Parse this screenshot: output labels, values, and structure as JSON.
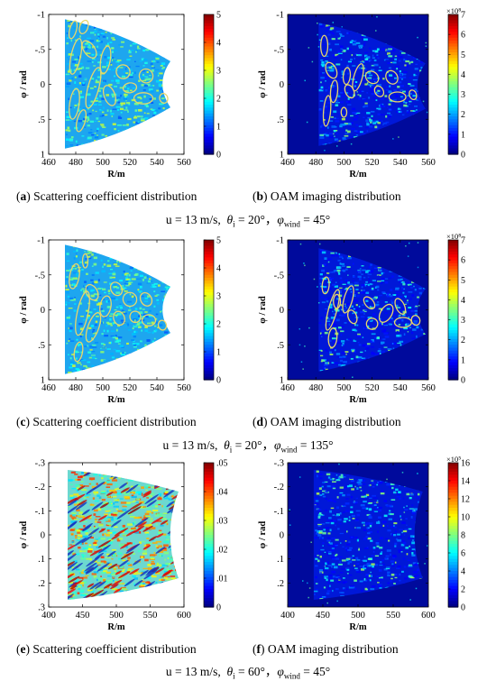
{
  "colormap": "jet",
  "ellipse_color": "#e8d66a",
  "chart_data": [
    {
      "id": "a",
      "type": "heatmap",
      "caption_tag": "a",
      "caption_text": "Scattering coefficient distribution",
      "xlabel": "R/m",
      "ylabel": "φ / rad",
      "xlim": [
        460,
        560
      ],
      "ylim": [
        -1,
        1
      ],
      "y_inverted": true,
      "xticks": [
        460,
        480,
        500,
        520,
        540,
        560
      ],
      "yticks": [
        -1,
        -0.5,
        0,
        0.5,
        1
      ],
      "colorbar": {
        "min": 0,
        "max": 5,
        "ticks": [
          0,
          1,
          2,
          3,
          4,
          5
        ],
        "exponent": ""
      },
      "panel_background": "white",
      "region": {
        "r_inner": 472,
        "r_outer": 550,
        "phi_top_inner": -0.93,
        "phi_bottom_inner": 0.92,
        "phi_top_outer": -0.33,
        "phi_bottom_outer": 0.33
      },
      "ellipses": [
        {
          "r": 478,
          "phi": -0.78,
          "rr": 2.5,
          "rp": 0.13,
          "tilt": 15
        },
        {
          "r": 480,
          "phi": -0.4,
          "rr": 3.5,
          "rp": 0.26,
          "tilt": 12
        },
        {
          "r": 479,
          "phi": 0.28,
          "rr": 3.5,
          "rp": 0.22,
          "tilt": 8
        },
        {
          "r": 484,
          "phi": 0.52,
          "rr": 3,
          "rp": 0.16,
          "tilt": 15
        },
        {
          "r": 486,
          "phi": -0.82,
          "rr": 3,
          "rp": 0.1,
          "tilt": 20
        },
        {
          "r": 490,
          "phi": -0.5,
          "rr": 4,
          "rp": 0.14,
          "tilt": -35
        },
        {
          "r": 493,
          "phi": 0.05,
          "rr": 4,
          "rp": 0.3,
          "tilt": 15
        },
        {
          "r": 502,
          "phi": -0.35,
          "rr": 3.5,
          "rp": 0.2,
          "tilt": 10
        },
        {
          "r": 505,
          "phi": 0.16,
          "rr": 4,
          "rp": 0.15,
          "tilt": -20
        },
        {
          "r": 515,
          "phi": -0.18,
          "rr": 5,
          "rp": 0.1,
          "tilt": -40
        },
        {
          "r": 520,
          "phi": 0.05,
          "rr": 5,
          "rp": 0.07,
          "tilt": -10
        },
        {
          "r": 532,
          "phi": -0.12,
          "rr": 5,
          "rp": 0.1,
          "tilt": -35
        },
        {
          "r": 530,
          "phi": 0.2,
          "rr": 7,
          "rp": 0.08,
          "tilt": 0
        },
        {
          "r": 545,
          "phi": 0.2,
          "rr": 3,
          "rp": 0.07,
          "tilt": -15
        }
      ]
    },
    {
      "id": "b",
      "type": "heatmap",
      "caption_tag": "b",
      "caption_text": "OAM imaging distribution",
      "xlabel": "R/m",
      "ylabel": "φ / rad",
      "xlim": [
        460,
        560
      ],
      "ylim": [
        -1,
        1
      ],
      "y_inverted": true,
      "xticks": [
        460,
        480,
        500,
        520,
        540,
        560
      ],
      "yticks": [
        -1,
        -0.5,
        0,
        0.5,
        1
      ],
      "colorbar": {
        "min": 0,
        "max": 7,
        "ticks": [
          0,
          1,
          2,
          3,
          4,
          5,
          6,
          7
        ],
        "exponent": "×10⁸"
      },
      "panel_background": "darkblue",
      "region": {
        "r_inner": 482,
        "r_outer": 558,
        "phi_top_inner": -0.88,
        "phi_bottom_inner": 0.88,
        "phi_top_outer": -0.3,
        "phi_bottom_outer": 0.35
      },
      "ellipses": [
        {
          "r": 486,
          "phi": -0.55,
          "rr": 2.5,
          "rp": 0.15,
          "tilt": 0
        },
        {
          "r": 491,
          "phi": -0.2,
          "rr": 3.5,
          "rp": 0.12,
          "tilt": -25
        },
        {
          "r": 493,
          "phi": 0.1,
          "rr": 2.5,
          "rp": 0.16,
          "tilt": 5
        },
        {
          "r": 488,
          "phi": 0.38,
          "rr": 2.5,
          "rp": 0.22,
          "tilt": 5
        },
        {
          "r": 502,
          "phi": -0.12,
          "rr": 2.5,
          "rp": 0.12,
          "tilt": 5
        },
        {
          "r": 504,
          "phi": 0.1,
          "rr": 3,
          "rp": 0.1,
          "tilt": -25
        },
        {
          "r": 500,
          "phi": 0.4,
          "rr": 2,
          "rp": 0.07,
          "tilt": 0
        },
        {
          "r": 510,
          "phi": -0.1,
          "rr": 3,
          "rp": 0.2,
          "tilt": 15
        },
        {
          "r": 520,
          "phi": -0.1,
          "rr": 4,
          "rp": 0.1,
          "tilt": -50
        },
        {
          "r": 525,
          "phi": 0.1,
          "rr": 3,
          "rp": 0.08,
          "tilt": -30
        },
        {
          "r": 534,
          "phi": -0.1,
          "rr": 4,
          "rp": 0.1,
          "tilt": -30
        },
        {
          "r": 538,
          "phi": 0.18,
          "rr": 6,
          "rp": 0.07,
          "tilt": 0
        },
        {
          "r": 549,
          "phi": 0.15,
          "rr": 2.5,
          "rp": 0.07,
          "tilt": -20
        }
      ]
    },
    {
      "id": "c",
      "type": "heatmap",
      "caption_tag": "c",
      "caption_text": "Scattering coefficient distribution",
      "xlabel": "R/m",
      "ylabel": "φ / rad",
      "xlim": [
        460,
        560
      ],
      "ylim": [
        -1,
        1
      ],
      "y_inverted": true,
      "xticks": [
        460,
        480,
        500,
        520,
        540,
        560
      ],
      "yticks": [
        -1,
        -0.5,
        0,
        0.5,
        1
      ],
      "colorbar": {
        "min": 0,
        "max": 5,
        "ticks": [
          0,
          1,
          2,
          3,
          4,
          5
        ],
        "exponent": ""
      },
      "panel_background": "white",
      "region": {
        "r_inner": 472,
        "r_outer": 550,
        "phi_top_inner": -0.93,
        "phi_bottom_inner": 0.92,
        "phi_top_outer": -0.33,
        "phi_bottom_outer": 0.33
      },
      "ellipses": [
        {
          "r": 479,
          "phi": -0.48,
          "rr": 3.5,
          "rp": 0.18,
          "tilt": 10
        },
        {
          "r": 485,
          "phi": 0.05,
          "rr": 4,
          "rp": 0.32,
          "tilt": 12
        },
        {
          "r": 482,
          "phi": 0.6,
          "rr": 3,
          "rp": 0.14,
          "tilt": 10
        },
        {
          "r": 487,
          "phi": -0.7,
          "rr": 2,
          "rp": 0.1,
          "tilt": 0
        },
        {
          "r": 492,
          "phi": -0.25,
          "rr": 4,
          "rp": 0.12,
          "tilt": -30
        },
        {
          "r": 493,
          "phi": 0.25,
          "rr": 4,
          "rp": 0.22,
          "tilt": 20
        },
        {
          "r": 502,
          "phi": -0.05,
          "rr": 4,
          "rp": 0.15,
          "tilt": 10
        },
        {
          "r": 510,
          "phi": -0.3,
          "rr": 4,
          "rp": 0.1,
          "tilt": -30
        },
        {
          "r": 512,
          "phi": 0.12,
          "rr": 4,
          "rp": 0.1,
          "tilt": -20
        },
        {
          "r": 520,
          "phi": -0.15,
          "rr": 5,
          "rp": 0.1,
          "tilt": -40
        },
        {
          "r": 524,
          "phi": 0.1,
          "rr": 4,
          "rp": 0.08,
          "tilt": -10
        },
        {
          "r": 532,
          "phi": -0.15,
          "rr": 4,
          "rp": 0.1,
          "tilt": -30
        },
        {
          "r": 534,
          "phi": 0.15,
          "rr": 5,
          "rp": 0.08,
          "tilt": 0
        },
        {
          "r": 544,
          "phi": 0.22,
          "rr": 3,
          "rp": 0.07,
          "tilt": -15
        }
      ]
    },
    {
      "id": "d",
      "type": "heatmap",
      "caption_tag": "d",
      "caption_text": "OAM imaging distribution",
      "xlabel": "R/m",
      "ylabel": "φ / rad",
      "xlim": [
        460,
        560
      ],
      "ylim": [
        -1,
        1
      ],
      "y_inverted": true,
      "xticks": [
        460,
        480,
        500,
        520,
        540,
        560
      ],
      "yticks": [
        -1,
        -0.5,
        0,
        0.5,
        1
      ],
      "colorbar": {
        "min": 0,
        "max": 7,
        "ticks": [
          0,
          1,
          2,
          3,
          4,
          5,
          6,
          7
        ],
        "exponent": "×10⁸"
      },
      "panel_background": "darkblue",
      "region": {
        "r_inner": 482,
        "r_outer": 558,
        "phi_top_inner": -0.88,
        "phi_bottom_inner": 0.88,
        "phi_top_outer": -0.3,
        "phi_bottom_outer": 0.35
      },
      "ellipses": [
        {
          "r": 487,
          "phi": -0.35,
          "rr": 2.5,
          "rp": 0.12,
          "tilt": 5
        },
        {
          "r": 492,
          "phi": 0.0,
          "rr": 3,
          "rp": 0.3,
          "tilt": 15
        },
        {
          "r": 492,
          "phi": 0.4,
          "rr": 3,
          "rp": 0.14,
          "tilt": 5
        },
        {
          "r": 495,
          "phi": -0.12,
          "rr": 2.5,
          "rp": 0.1,
          "tilt": 0
        },
        {
          "r": 503,
          "phi": -0.15,
          "rr": 3,
          "rp": 0.2,
          "tilt": 15
        },
        {
          "r": 506,
          "phi": 0.1,
          "rr": 3,
          "rp": 0.1,
          "tilt": -20
        },
        {
          "r": 518,
          "phi": -0.1,
          "rr": 3,
          "rp": 0.1,
          "tilt": -40
        },
        {
          "r": 520,
          "phi": 0.2,
          "rr": 4,
          "rp": 0.08,
          "tilt": -10
        },
        {
          "r": 530,
          "phi": 0.05,
          "rr": 4,
          "rp": 0.14,
          "tilt": 30
        },
        {
          "r": 540,
          "phi": -0.05,
          "rr": 3,
          "rp": 0.12,
          "tilt": -25
        },
        {
          "r": 542,
          "phi": 0.18,
          "rr": 6,
          "rp": 0.07,
          "tilt": 0
        },
        {
          "r": 551,
          "phi": 0.15,
          "rr": 3,
          "rp": 0.07,
          "tilt": -20
        }
      ]
    },
    {
      "id": "e",
      "type": "heatmap",
      "caption_tag": "e",
      "caption_text": "Scattering coefficient distribution",
      "xlabel": "R/m",
      "ylabel": "φ / rad",
      "xlim": [
        400,
        600
      ],
      "ylim": [
        -0.3,
        0.3
      ],
      "y_inverted": true,
      "xticks": [
        400,
        450,
        500,
        550,
        600
      ],
      "yticks": [
        -0.3,
        -0.2,
        -0.1,
        0,
        0.1,
        0.2,
        0.3
      ],
      "colorbar": {
        "min": 0,
        "max": 0.05,
        "ticks": [
          0,
          0.01,
          0.02,
          0.03,
          0.04,
          0.05
        ],
        "exponent": ""
      },
      "panel_background": "white",
      "region": {
        "r_inner": 428,
        "r_outer": 592,
        "phi_top_inner": -0.27,
        "phi_bottom_inner": 0.27,
        "phi_top_outer": -0.18,
        "phi_bottom_outer": 0.18
      },
      "ellipses": []
    },
    {
      "id": "f",
      "type": "heatmap",
      "caption_tag": "f",
      "caption_text": "OAM imaging distribution",
      "xlabel": "R/m",
      "ylabel": "φ / rad",
      "xlim": [
        400,
        600
      ],
      "ylim": [
        -0.3,
        0.3
      ],
      "y_inverted": true,
      "xticks": [
        400,
        450,
        500,
        550,
        600
      ],
      "yticks": [
        -0.3,
        -0.2,
        -0.1,
        0,
        0.1,
        0.2
      ],
      "colorbar": {
        "min": 0,
        "max": 16,
        "ticks": [
          0,
          2,
          4,
          6,
          8,
          10,
          12,
          14,
          16
        ],
        "exponent": "×10⁵"
      },
      "panel_background": "darkblue",
      "region": {
        "r_inner": 437,
        "r_outer": 592,
        "phi_top_inner": -0.27,
        "phi_bottom_inner": 0.27,
        "phi_top_outer": -0.18,
        "phi_bottom_outer": 0.18
      },
      "ellipses": []
    }
  ],
  "conditions": [
    {
      "u": "u = 13 m/s,",
      "theta": "θ",
      "theta_sub": "i",
      "theta_val": " = 20°，",
      "phi": "φ",
      "phi_sub": "wind",
      "phi_val": " = 45°"
    },
    {
      "u": "u = 13 m/s,",
      "theta": "θ",
      "theta_sub": "i",
      "theta_val": " = 20°，",
      "phi": "φ",
      "phi_sub": "wind",
      "phi_val": " = 135°"
    },
    {
      "u": "u = 13 m/s,",
      "theta": "θ",
      "theta_sub": "i",
      "theta_val": " = 60°，",
      "phi": "φ",
      "phi_sub": "wind",
      "phi_val": " = 45°"
    }
  ]
}
